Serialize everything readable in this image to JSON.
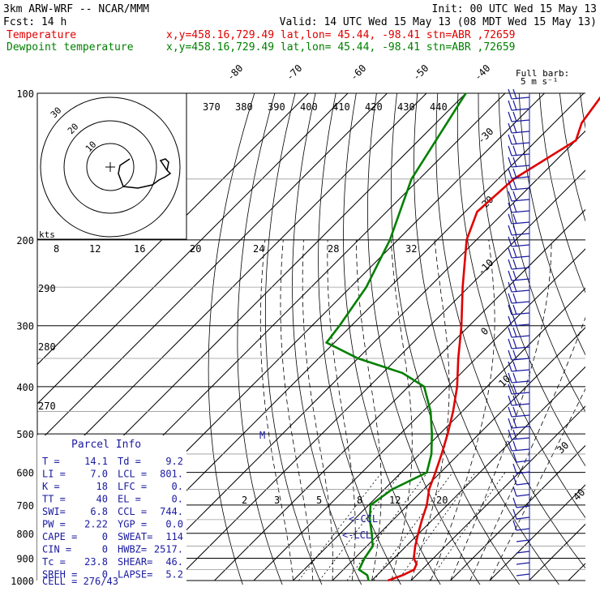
{
  "header": {
    "line1_left": "3km ARW-WRF -- NCAR/MMM",
    "line1_right": "Init: 00 UTC Wed 15 May 13",
    "line2_left": "Fcst:    14 h",
    "line2_right": "Valid: 14 UTC Wed 15 May 13 (08 MDT Wed 15 May 13)",
    "temp_label": "Temperature",
    "temp_info": "x,y=458.16,729.49   lat,lon= 45.44, -98.41   stn=ABR ,72659",
    "dew_label": "Dewpoint temperature",
    "dew_info": "x,y=458.16,729.49   lat,lon= 45.44, -98.41   stn=ABR ,72659",
    "full_barb_1": "Full barb:",
    "full_barb_2": "5 m s⁻¹"
  },
  "colors": {
    "temperature": "#e00000",
    "dewpoint": "#008000",
    "parcel_box": "#1a1aa0"
  },
  "chart_data": {
    "type": "line",
    "title": "",
    "ylabel": "",
    "pressure_levels": [
      100,
      200,
      300,
      400,
      500,
      600,
      700,
      800,
      900,
      1000
    ],
    "isotherm_labels": [
      -80,
      -70,
      -60,
      -50,
      -40,
      -30,
      -20,
      -10,
      0,
      10,
      20,
      30,
      40
    ],
    "theta_labels_top": [
      370,
      380,
      390,
      400,
      410,
      420,
      430,
      440
    ],
    "theta_labels_left": [
      290,
      280,
      270
    ],
    "mixing_ratio_labels": [
      2,
      3,
      5,
      8,
      12,
      20
    ],
    "hodograph_speed_labels": [
      "8",
      "12",
      "16",
      "20",
      "24",
      "28",
      "32"
    ],
    "hodograph_unit": "kts",
    "hodograph_ring_labels": [
      "30",
      "20",
      "10"
    ],
    "parcel_markers": [
      "<-CCL",
      "<-LCL"
    ],
    "series": [
      {
        "name": "Temperature",
        "points": [
          [
            1000,
            14.1
          ],
          [
            975,
            16.5
          ],
          [
            950,
            18.0
          ],
          [
            925,
            17.2
          ],
          [
            900,
            15.0
          ],
          [
            850,
            12.3
          ],
          [
            800,
            9.8
          ],
          [
            750,
            7.3
          ],
          [
            700,
            4.8
          ],
          [
            650,
            1.4
          ],
          [
            600,
            -1.3
          ],
          [
            550,
            -4.4
          ],
          [
            500,
            -8.0
          ],
          [
            450,
            -12.3
          ],
          [
            400,
            -17.6
          ],
          [
            350,
            -24.5
          ],
          [
            300,
            -32.0
          ],
          [
            250,
            -41.5
          ],
          [
            200,
            -52.5
          ],
          [
            175,
            -57.0
          ],
          [
            150,
            -56.0
          ],
          [
            125,
            -50.0
          ],
          [
            115,
            -53.0
          ],
          [
            100,
            -55.0
          ]
        ]
      },
      {
        "name": "Dewpoint temperature",
        "points": [
          [
            1000,
            9.2
          ],
          [
            975,
            7.5
          ],
          [
            950,
            4.0
          ],
          [
            900,
            2.5
          ],
          [
            850,
            1.5
          ],
          [
            800,
            -2.0
          ],
          [
            750,
            -6.0
          ],
          [
            700,
            -9.5
          ],
          [
            650,
            -8.0
          ],
          [
            600,
            -3.5
          ],
          [
            550,
            -7.0
          ],
          [
            500,
            -12.0
          ],
          [
            450,
            -18.0
          ],
          [
            400,
            -26.0
          ],
          [
            375,
            -35.0
          ],
          [
            350,
            -50.0
          ],
          [
            325,
            -62.0
          ],
          [
            300,
            -63.0
          ],
          [
            250,
            -66.0
          ],
          [
            200,
            -72.0
          ],
          [
            150,
            -82.0
          ],
          [
            100,
            -90.0
          ]
        ]
      }
    ]
  },
  "parcel_info": {
    "title": "Parcel Info",
    "rows": [
      [
        "T  =",
        "14.1",
        "Td =",
        "9.2"
      ],
      [
        "LI =",
        "7.0",
        "LCL =",
        "801."
      ],
      [
        "K  =",
        "18",
        "LFC =",
        "0."
      ],
      [
        "TT =",
        "40",
        "EL  =",
        "0."
      ],
      [
        "SWI=",
        "6.8",
        "CCL =",
        "744."
      ],
      [
        "PW =",
        "2.22",
        "YGP =",
        "0.0"
      ],
      [
        "CAPE =",
        "0",
        "SWEAT=",
        "114"
      ],
      [
        "CIN  =",
        "0",
        "HWBZ=",
        "2517."
      ],
      [
        "Tc =",
        "23.8",
        "SHEAR=",
        "46."
      ],
      [
        "SREH =",
        "0",
        "LAPSE=",
        "5.2"
      ]
    ],
    "cell": "CELL = 276/43"
  }
}
